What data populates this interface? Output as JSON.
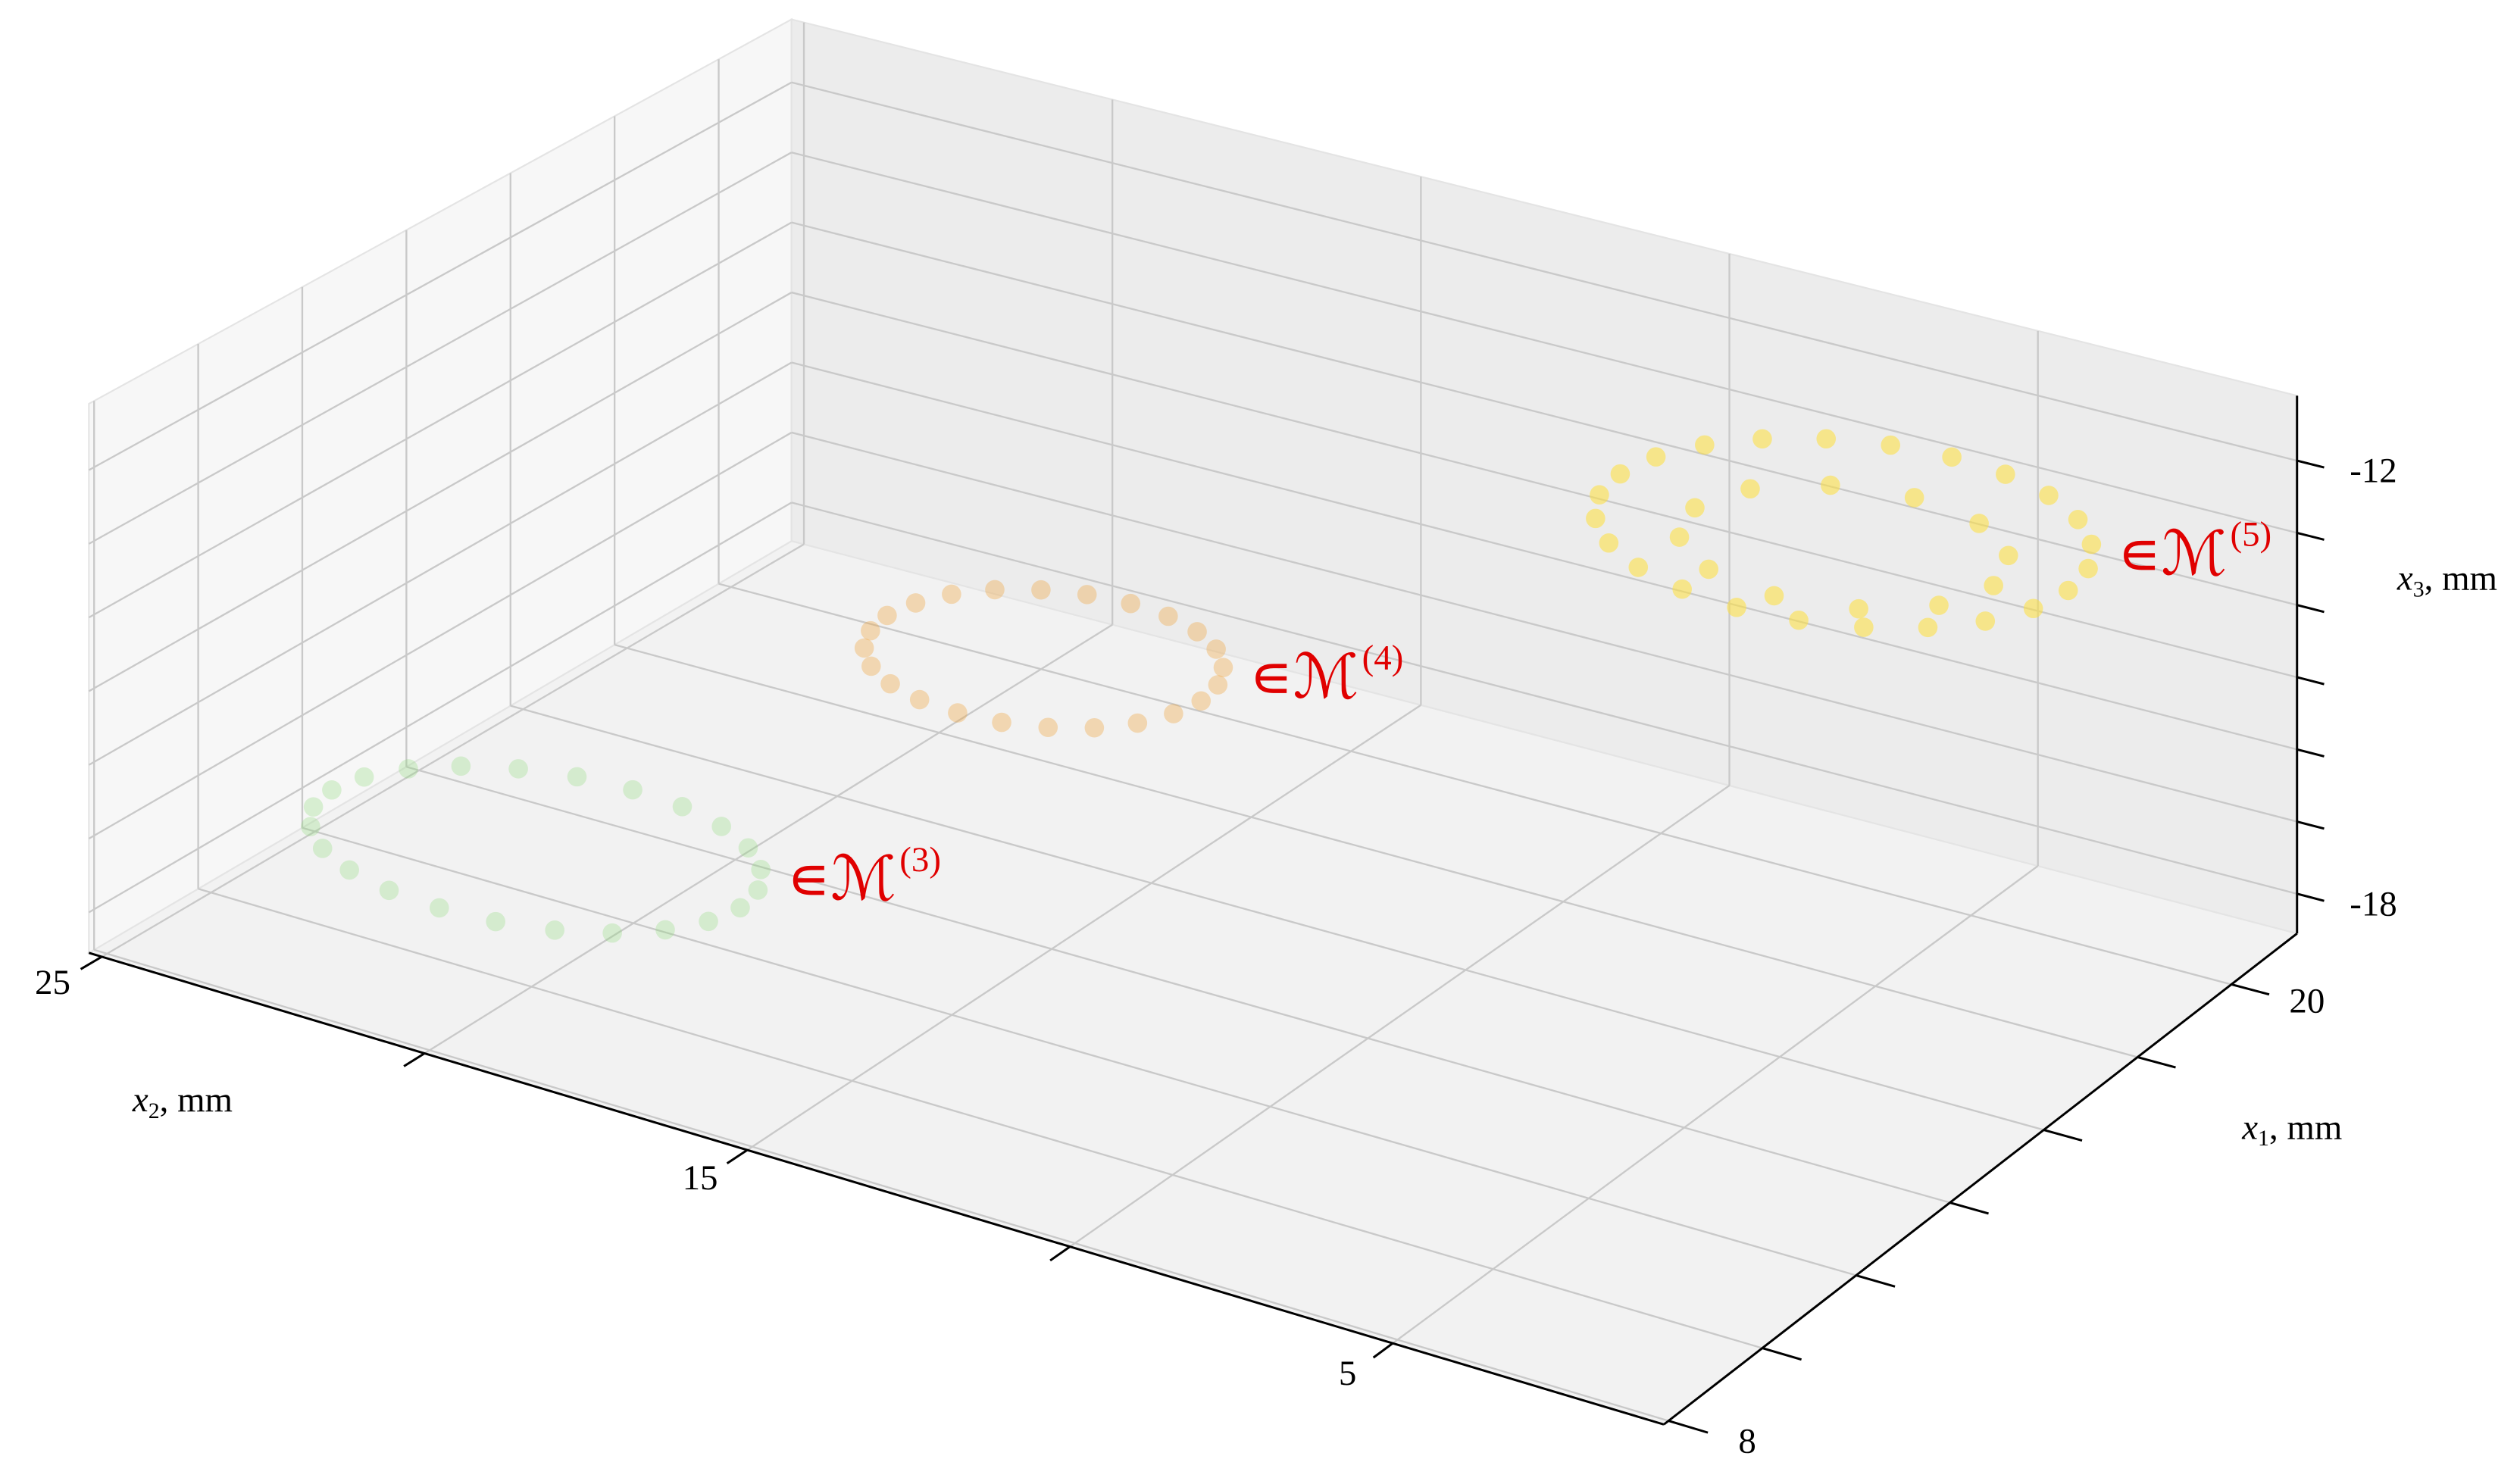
{
  "chart_data": {
    "type": "scatter3d",
    "x1lim": [
      7.9,
      21.4
    ],
    "x1ticks": [
      8,
      20
    ],
    "x1minorticks": [
      10,
      12,
      14,
      16,
      18
    ],
    "x2lim": [
      0.8,
      25.2
    ],
    "x2ticks": [
      25,
      15,
      5
    ],
    "x2minorticks": [
      20,
      10
    ],
    "x3lim": [
      -18.55,
      -11.1
    ],
    "x3ticks": [
      -12,
      -18
    ],
    "x3minorticks": [
      -13,
      -14,
      -15,
      -16,
      -17
    ],
    "x1label": {
      "symbol": "x",
      "subscript": "1",
      "unit": ", mm"
    },
    "x2label": {
      "symbol": "x",
      "subscript": "2",
      "unit": ", mm"
    },
    "x3label": {
      "symbol": "x",
      "subscript": "3",
      "unit": ", mm"
    },
    "grid": true,
    "series": [
      {
        "label": "∊ℳ",
        "label_sup": "(3)",
        "color": "#8fd97a",
        "opacity": 0.3,
        "x1": [
          11.34,
          11.83,
          12.29,
          12.68,
          12.98,
          13.17,
          13.23,
          13.17,
          12.98,
          12.68,
          12.29,
          11.83,
          11.34,
          10.85,
          10.4,
          10.0,
          9.7,
          9.51,
          9.45,
          9.51,
          9.7,
          10.0,
          10.4,
          10.85
        ],
        "x2": [
          24.2,
          24.09,
          23.77,
          23.26,
          22.6,
          21.83,
          21.0,
          20.17,
          19.4,
          18.74,
          18.23,
          17.91,
          17.8,
          17.91,
          18.23,
          18.74,
          19.4,
          20.17,
          21.0,
          21.83,
          22.6,
          23.26,
          23.77,
          24.09
        ],
        "x3": [
          -17.5,
          -17.5,
          -17.5,
          -17.5,
          -17.5,
          -17.5,
          -17.5,
          -17.5,
          -17.5,
          -17.5,
          -17.5,
          -17.5,
          -17.5,
          -17.5,
          -17.5,
          -17.5,
          -17.5,
          -17.5,
          -17.5,
          -17.5,
          -17.5,
          -17.5,
          -17.5,
          -17.5
        ]
      },
      {
        "label": "∊ℳ",
        "label_sup": "(4)",
        "color": "#f2a43a",
        "opacity": 0.35,
        "x1": [
          16.24,
          16.69,
          17.1,
          17.46,
          17.73,
          17.9,
          17.96,
          17.9,
          17.73,
          17.46,
          17.1,
          16.69,
          16.24,
          15.8,
          15.38,
          15.02,
          14.75,
          14.58,
          14.52,
          14.58,
          14.75,
          15.02,
          15.38,
          15.8
        ],
        "x2": [
          19.4,
          19.31,
          19.07,
          18.67,
          18.15,
          17.55,
          16.9,
          16.25,
          15.65,
          15.13,
          14.73,
          14.49,
          14.4,
          14.49,
          14.73,
          15.13,
          15.65,
          16.25,
          16.9,
          17.55,
          18.15,
          18.67,
          19.07,
          19.31
        ],
        "x3": [
          -16,
          -16,
          -16,
          -16,
          -16,
          -16,
          -16,
          -16,
          -16,
          -16,
          -16,
          -16,
          -16,
          -16,
          -16,
          -16,
          -16,
          -16,
          -16,
          -16,
          -16,
          -16,
          -16,
          -16
        ]
      },
      {
        "label": "∊ℳ",
        "label_sup": "(5)",
        "color": "#ffe03a",
        "opacity": 0.55,
        "x1": [
          18.91,
          19.49,
          20.03,
          20.49,
          20.85,
          21.07,
          21.15,
          21.07,
          20.85,
          20.49,
          20.03,
          19.49,
          18.91,
          18.33,
          17.79,
          17.33,
          16.97,
          16.75,
          16.67,
          16.75,
          16.97,
          17.33,
          17.79,
          18.33,
          18.91,
          19.64,
          20.17,
          20.37,
          20.17,
          19.64,
          18.91,
          18.18,
          17.65,
          17.45,
          17.65,
          18.18
        ],
        "x2": [
          9.8,
          9.68,
          9.32,
          8.75,
          8.0,
          7.13,
          6.2,
          5.27,
          4.4,
          3.65,
          3.08,
          2.72,
          2.6,
          2.72,
          3.08,
          3.65,
          4.4,
          5.27,
          6.2,
          7.13,
          8.0,
          8.75,
          9.32,
          9.68,
          8.6,
          8.28,
          7.4,
          6.2,
          5.0,
          4.12,
          3.8,
          4.12,
          5.0,
          6.2,
          7.4,
          8.28
        ],
        "x3": [
          -13,
          -13,
          -13,
          -13,
          -13,
          -13,
          -13,
          -13,
          -13,
          -13,
          -13,
          -13,
          -13,
          -13,
          -13,
          -13,
          -13,
          -13,
          -13,
          -13,
          -13,
          -13,
          -13,
          -13,
          -13.2,
          -13.2,
          -13.2,
          -13.2,
          -13.2,
          -13.2,
          -13.2,
          -13.2,
          -13.2,
          -13.2,
          -13.2,
          -13.2
        ]
      }
    ]
  }
}
